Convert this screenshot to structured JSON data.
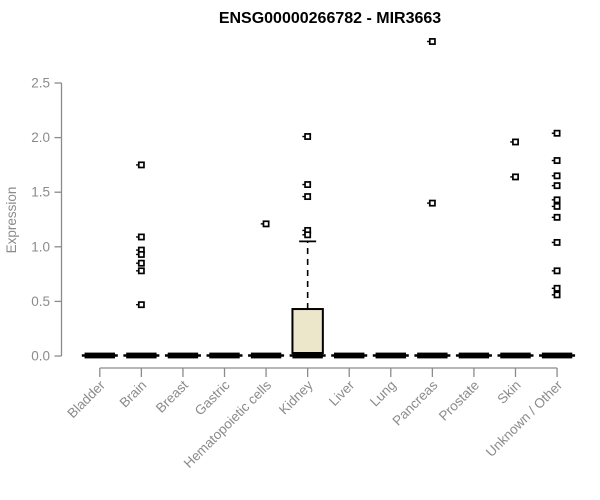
{
  "chart_data": {
    "type": "boxplot",
    "title": "ENSG00000266782 - MIR3663",
    "ylabel": "Expression",
    "xlabel": "",
    "ylim": [
      0,
      2.5
    ],
    "ytick_labels": [
      "0.0",
      "0.5",
      "1.0",
      "1.5",
      "2.0",
      "2.5"
    ],
    "grid": false,
    "legend": false,
    "axis_color": "#8B8B8B",
    "box_fill": "#ECE7CB",
    "box_stroke": "#000000",
    "point_color": "#000000",
    "categories": [
      "Bladder",
      "Brain",
      "Breast",
      "Gastric",
      "Hematopoietic cells",
      "Kidney",
      "Liver",
      "Lung",
      "Pancreas",
      "Prostate",
      "Skin",
      "Unknown / Other"
    ],
    "series": [
      {
        "name": "Bladder",
        "median": 0,
        "q1": 0,
        "q3": 0,
        "whisker_low": 0,
        "whisker_high": 0,
        "outliers": []
      },
      {
        "name": "Brain",
        "median": 0,
        "q1": 0,
        "q3": 0,
        "whisker_low": 0,
        "whisker_high": 0,
        "outliers": [
          1.75,
          1.09,
          0.97,
          0.93,
          0.85,
          0.78,
          0.47
        ]
      },
      {
        "name": "Breast",
        "median": 0,
        "q1": 0,
        "q3": 0,
        "whisker_low": 0,
        "whisker_high": 0,
        "outliers": []
      },
      {
        "name": "Gastric",
        "median": 0,
        "q1": 0,
        "q3": 0,
        "whisker_low": 0,
        "whisker_high": 0,
        "outliers": []
      },
      {
        "name": "Hematopoietic cells",
        "median": 0,
        "q1": 0,
        "q3": 0,
        "whisker_low": 0,
        "whisker_high": 0,
        "outliers": [
          1.21
        ]
      },
      {
        "name": "Kidney",
        "median": 0,
        "q1": 0,
        "q3": 0.43,
        "whisker_low": 0,
        "whisker_high": 1.05,
        "outliers": [
          2.01,
          1.57,
          1.46,
          1.15,
          1.11
        ]
      },
      {
        "name": "Liver",
        "median": 0,
        "q1": 0,
        "q3": 0,
        "whisker_low": 0,
        "whisker_high": 0,
        "outliers": []
      },
      {
        "name": "Lung",
        "median": 0,
        "q1": 0,
        "q3": 0,
        "whisker_low": 0,
        "whisker_high": 0,
        "outliers": []
      },
      {
        "name": "Pancreas",
        "median": 0,
        "q1": 0,
        "q3": 0,
        "whisker_low": 0,
        "whisker_high": 0,
        "outliers": [
          2.88,
          1.4
        ]
      },
      {
        "name": "Prostate",
        "median": 0,
        "q1": 0,
        "q3": 0,
        "whisker_low": 0,
        "whisker_high": 0,
        "outliers": []
      },
      {
        "name": "Skin",
        "median": 0,
        "q1": 0,
        "q3": 0,
        "whisker_low": 0,
        "whisker_high": 0,
        "outliers": [
          1.96,
          1.64
        ]
      },
      {
        "name": "Unknown / Other",
        "median": 0,
        "q1": 0,
        "q3": 0,
        "whisker_low": 0,
        "whisker_high": 0,
        "outliers": [
          2.04,
          1.79,
          1.65,
          1.56,
          1.43,
          1.37,
          1.27,
          1.04,
          0.78,
          0.62,
          0.56
        ]
      }
    ]
  }
}
